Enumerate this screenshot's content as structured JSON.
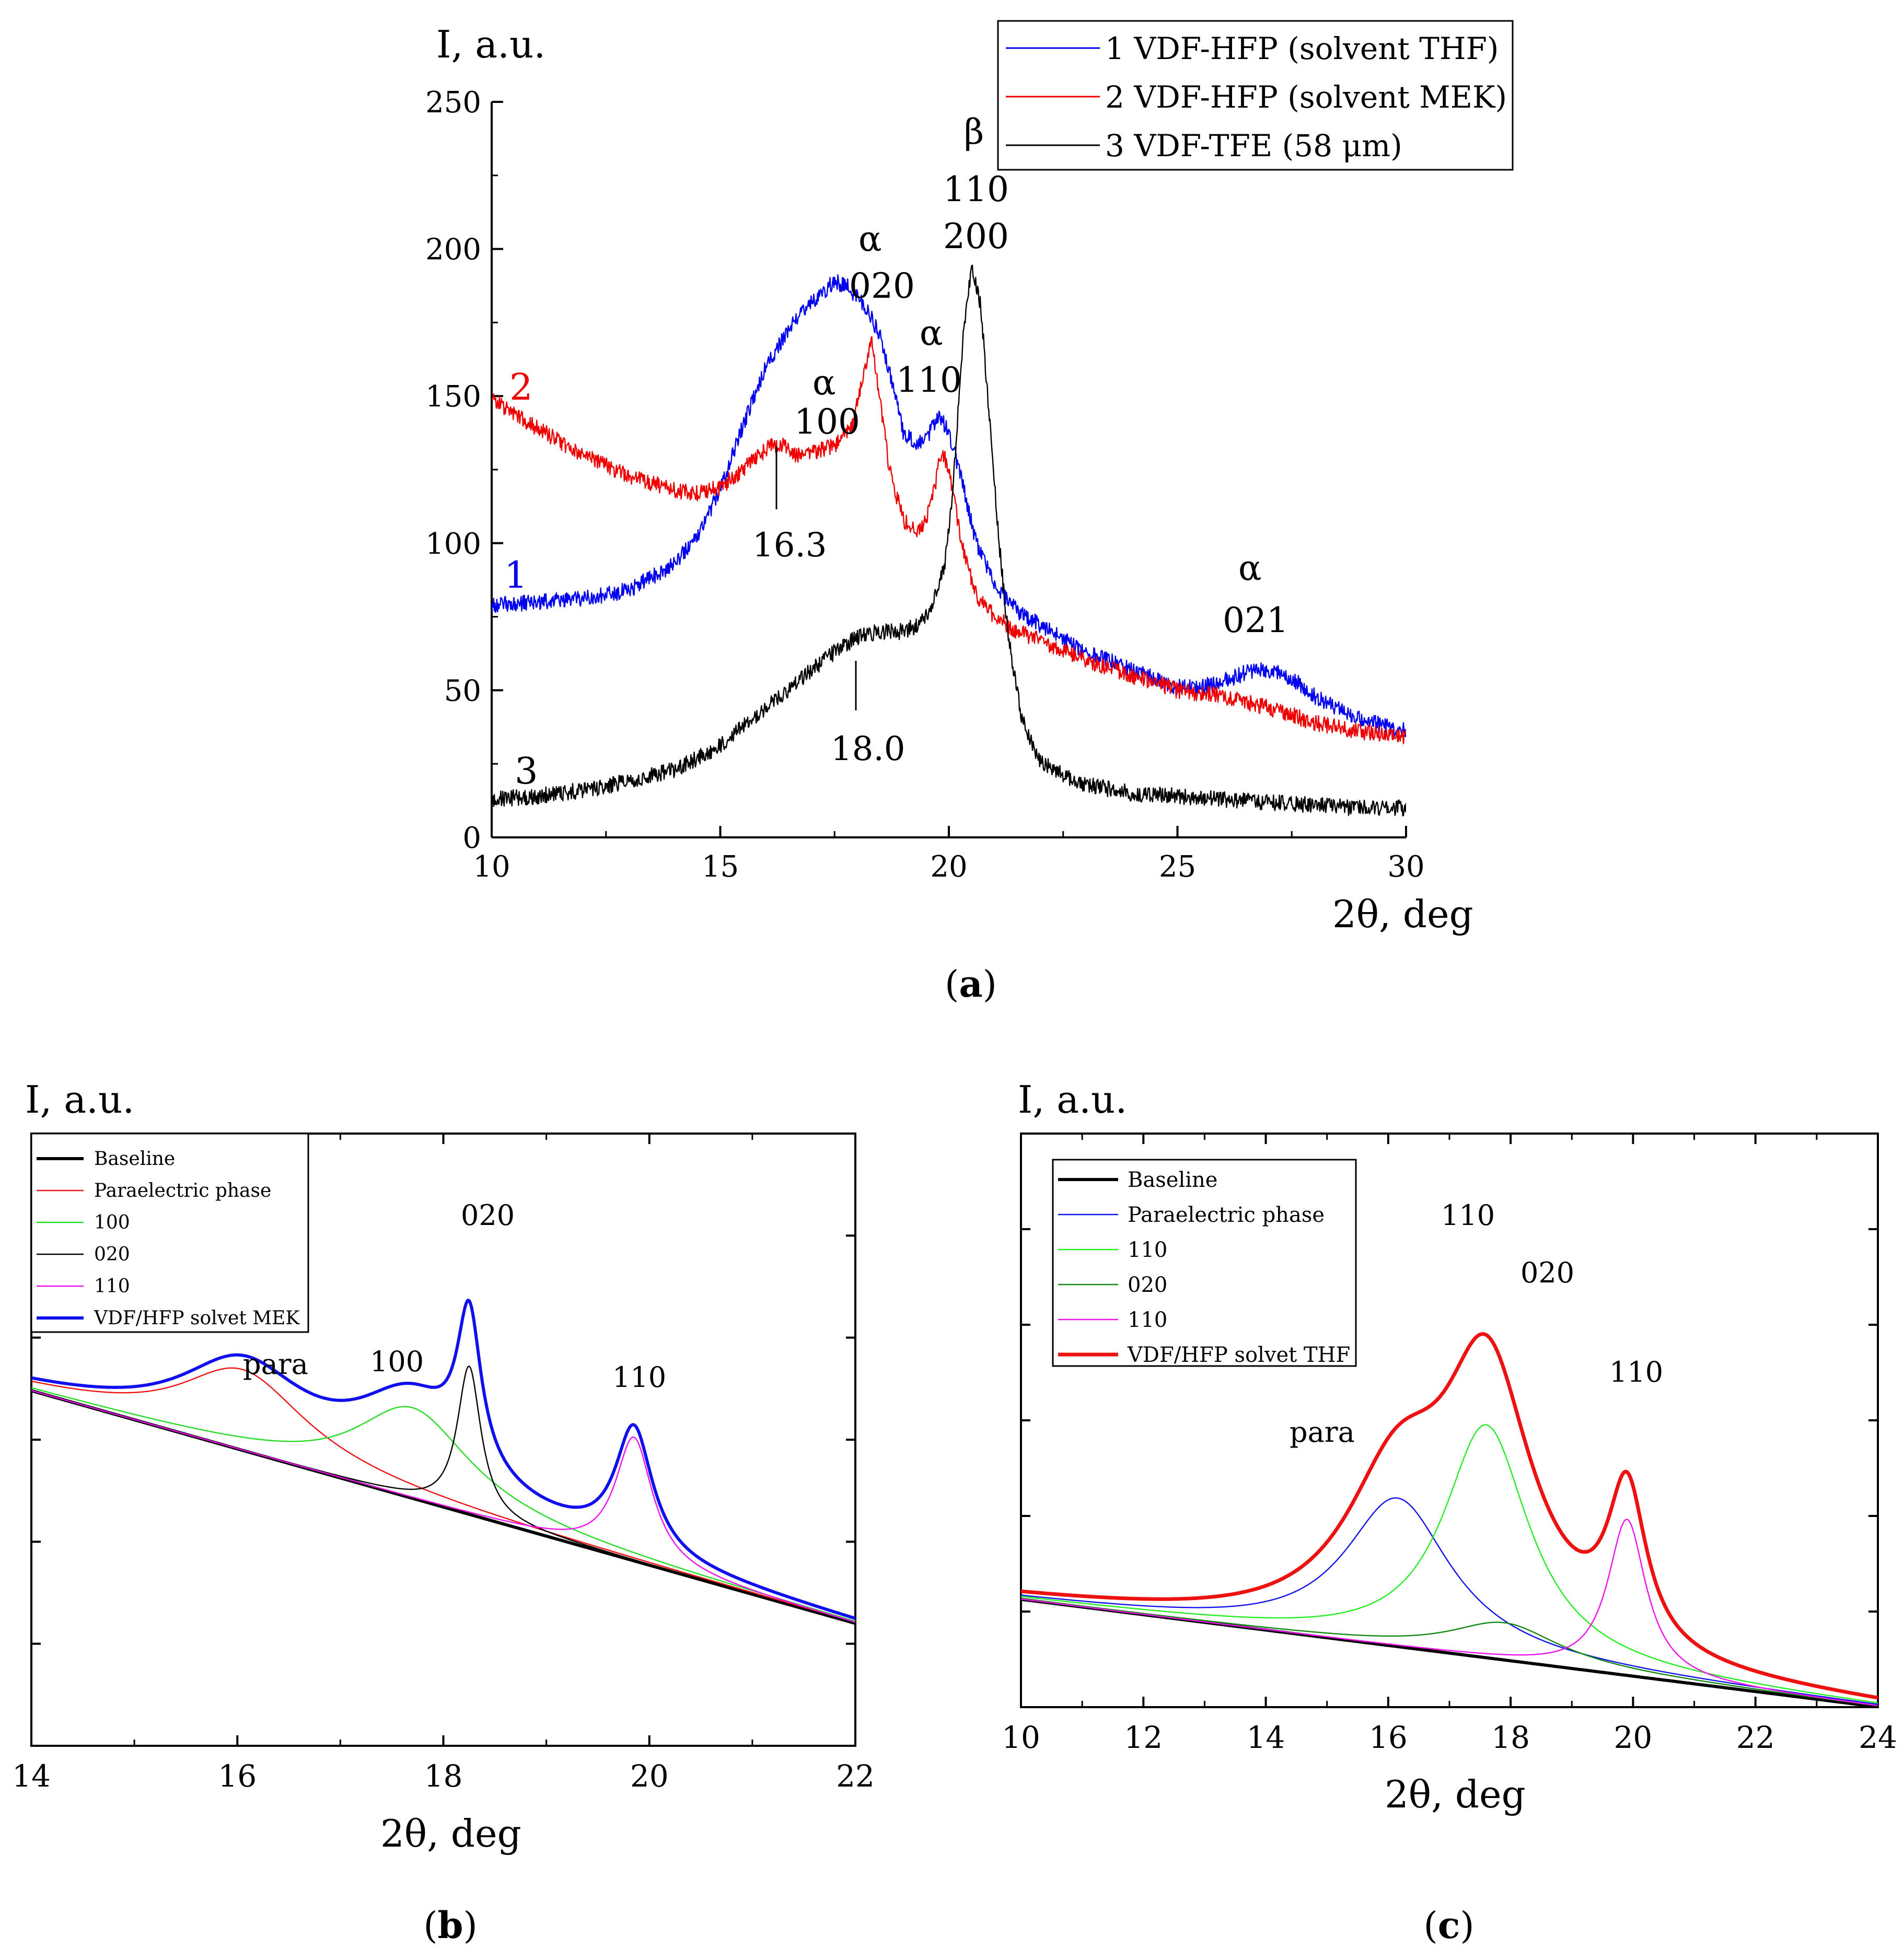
{
  "chart_data": [
    {
      "panel": "a",
      "type": "line",
      "panel_label": "a",
      "ylabel": "I, a.u.",
      "xlabel": "2θ, deg",
      "xlim": [
        10,
        30
      ],
      "ylim": [
        0,
        250
      ],
      "xticks": [
        10,
        15,
        20,
        25,
        30
      ],
      "yticks": [
        0,
        50,
        100,
        150,
        200,
        250
      ],
      "legend": [
        "1 VDF-HFP (solvent THF)",
        "2 VDF-HFP (solvent MEK)",
        "3 VDF-TFE (58 μm)"
      ],
      "legend_position": "top-right",
      "curve_labels": [
        "1",
        "2",
        "3"
      ],
      "annotations": [
        "α",
        "020",
        "α",
        "100",
        "α",
        "110",
        "β",
        "110",
        "200",
        "α",
        "021",
        "16.3",
        "18.0"
      ],
      "series": [
        {
          "name": "1 VDF-HFP (solvent THF)",
          "color": "#0000ee",
          "x": [
            10,
            11,
            12,
            13,
            14,
            14.5,
            15,
            15.5,
            16,
            16.5,
            17,
            17.5,
            17.8,
            18.2,
            18.5,
            18.8,
            19,
            19.3,
            19.6,
            19.8,
            20,
            20.3,
            20.6,
            21,
            21.5,
            22,
            23,
            24,
            25,
            25.5,
            26,
            26.5,
            27,
            27.5,
            28,
            29,
            30
          ],
          "values": [
            79,
            80,
            81,
            84,
            93,
            103,
            118,
            140,
            160,
            173,
            182,
            189,
            187,
            180,
            170,
            152,
            138,
            133,
            138,
            143,
            138,
            120,
            100,
            86,
            77,
            72,
            63,
            57,
            51,
            51,
            53,
            56,
            57,
            54,
            48,
            40,
            36
          ]
        },
        {
          "name": "2 VDF-HFP (solvent MEK)",
          "color": "#ee0000",
          "x": [
            10,
            11,
            12,
            13,
            14,
            14.5,
            15,
            15.5,
            16,
            16.3,
            16.6,
            17,
            17.5,
            17.9,
            18.1,
            18.3,
            18.5,
            18.7,
            19,
            19.3,
            19.5,
            19.7,
            19.85,
            20,
            20.3,
            20.6,
            21,
            21.5,
            22,
            23,
            24,
            25,
            26,
            27,
            28,
            29,
            30
          ],
          "values": [
            149,
            139,
            130,
            123,
            118,
            117,
            119,
            125,
            132,
            134,
            130,
            131,
            133,
            140,
            155,
            170,
            148,
            125,
            108,
            104,
            108,
            120,
            132,
            125,
            98,
            82,
            75,
            70,
            67,
            60,
            55,
            50,
            48,
            44,
            39,
            36,
            34
          ]
        },
        {
          "name": "3 VDF-TFE (58 μm)",
          "color": "#000000",
          "x": [
            10,
            11,
            12,
            13,
            14,
            15,
            15.5,
            16,
            16.5,
            17,
            17.5,
            18,
            18.5,
            19,
            19.3,
            19.6,
            19.9,
            20.1,
            20.3,
            20.5,
            20.7,
            20.9,
            21.1,
            21.3,
            21.6,
            22,
            22.5,
            23,
            24,
            25,
            26,
            27,
            28,
            29,
            30
          ],
          "values": [
            13,
            14,
            16,
            19,
            23,
            31,
            38,
            44,
            50,
            57,
            63,
            68,
            70,
            70,
            72,
            78,
            92,
            120,
            168,
            195,
            180,
            140,
            100,
            68,
            40,
            26,
            21,
            18,
            15,
            14,
            13,
            12,
            11,
            10,
            10
          ]
        }
      ]
    },
    {
      "panel": "b",
      "type": "line",
      "panel_label": "b",
      "ylabel": "I, a.u.",
      "xlabel": "2θ, deg",
      "xlim": [
        14,
        22
      ],
      "ylim": [
        0,
        1
      ],
      "xticks": [
        14,
        16,
        18,
        20,
        22
      ],
      "legend_position": "top-left",
      "peak_labels": [
        "para",
        "100",
        "020",
        "110"
      ],
      "series": [
        {
          "name": "Baseline",
          "color": "#000000",
          "width": 6,
          "kind": "baseline",
          "start": 0.58,
          "slope": -0.0475
        },
        {
          "name": "Paraelectric phase",
          "color": "#ee1111",
          "width": 2.4,
          "peaks": [
            {
              "amp": 0.132,
              "center": 16.05,
              "width": 0.75
            }
          ]
        },
        {
          "name": "100",
          "color": "#22dd22",
          "width": 2.4,
          "peaks": [
            {
              "amp": 0.148,
              "center": 17.7,
              "width": 0.68
            }
          ]
        },
        {
          "name": "020",
          "color": "#000000",
          "width": 2.4,
          "peaks": [
            {
              "amp": 0.242,
              "center": 18.25,
              "width": 0.14
            }
          ]
        },
        {
          "name": "110",
          "color": "#ee11ee",
          "width": 2.4,
          "peaks": [
            {
              "amp": 0.202,
              "center": 19.85,
              "width": 0.22
            }
          ]
        },
        {
          "name": "VDF/HFP solvet MEK",
          "color": "#1010ee",
          "width": 6,
          "kind": "sum"
        }
      ]
    },
    {
      "panel": "c",
      "type": "line",
      "panel_label": "c",
      "ylabel": "I, a.u.",
      "xlabel": "2θ, deg",
      "xlim": [
        10,
        24
      ],
      "ylim": [
        0,
        1
      ],
      "xticks": [
        10,
        12,
        14,
        16,
        18,
        20,
        22,
        24
      ],
      "legend_position": "top-left",
      "peak_labels": [
        "para",
        "110",
        "020",
        "110"
      ],
      "series": [
        {
          "name": "Baseline",
          "color": "#000000",
          "width": 6,
          "kind": "baseline",
          "start": 0.188,
          "slope": -0.0134
        },
        {
          "name": "Paraelectric phase",
          "color": "#1111ee",
          "width": 2.4,
          "peaks": [
            {
              "amp": 0.259,
              "center": 16.15,
              "width": 1.05
            }
          ]
        },
        {
          "name": "110",
          "color": "#22ee22",
          "width": 2.4,
          "peaks": [
            {
              "amp": 0.406,
              "center": 17.6,
              "width": 0.85
            }
          ]
        },
        {
          "name": "020",
          "color": "#118811",
          "width": 2.4,
          "peaks": [
            {
              "amp": 0.065,
              "center": 17.9,
              "width": 1.1
            }
          ]
        },
        {
          "name": "110",
          "color": "#ee11ee",
          "width": 2.4,
          "peaks": [
            {
              "amp": 0.272,
              "center": 19.9,
              "width": 0.38
            }
          ]
        },
        {
          "name": "VDF/HFP solvet THF",
          "color": "#ee1111",
          "width": 7,
          "kind": "sum"
        }
      ]
    }
  ]
}
